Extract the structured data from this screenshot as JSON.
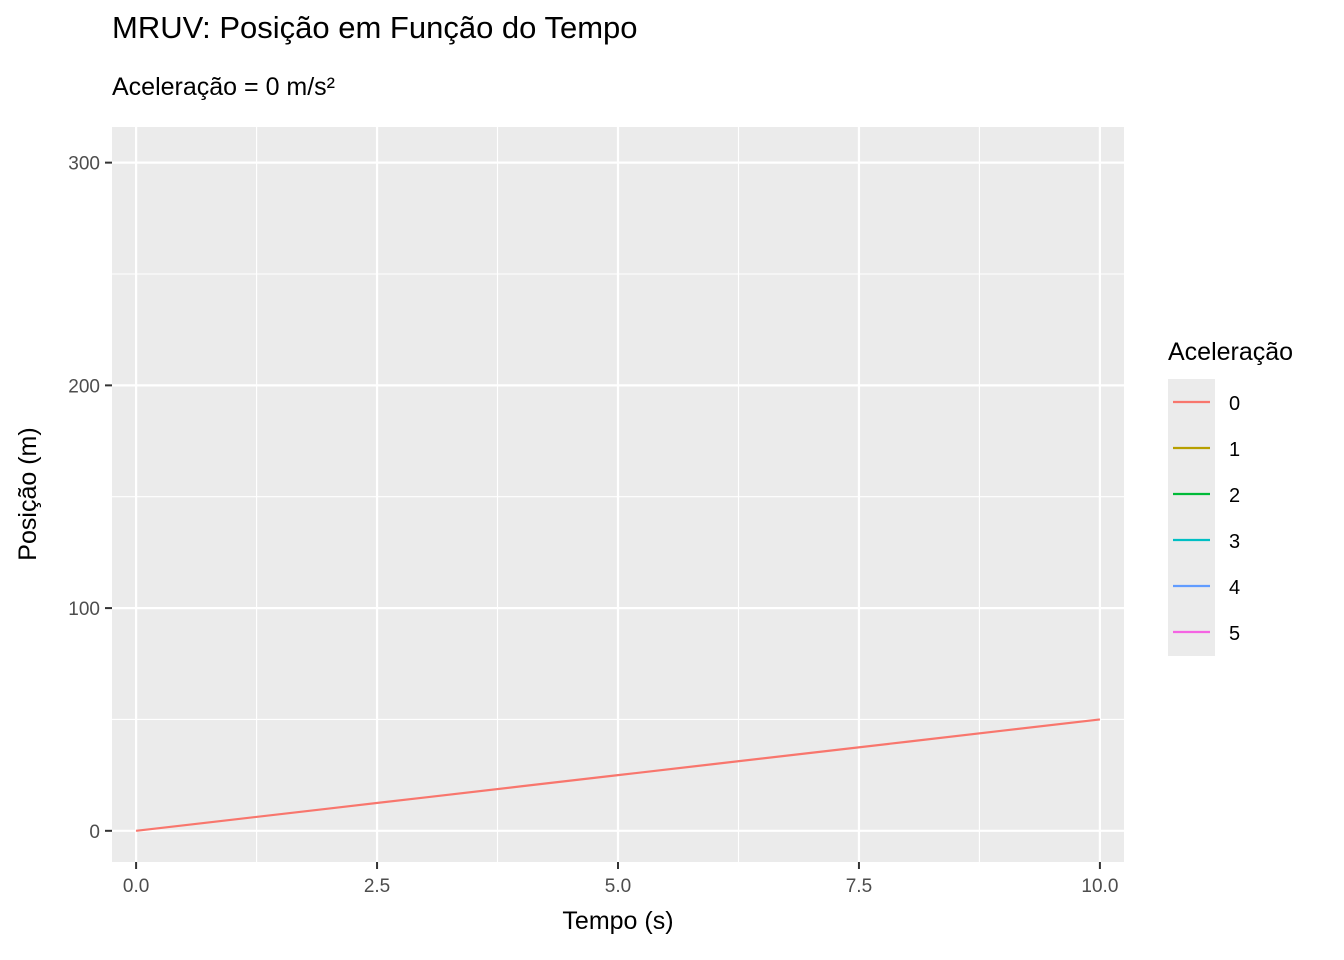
{
  "chart_data": {
    "type": "line",
    "title": "MRUV: Posição em Função do Tempo",
    "subtitle": "Aceleração = 0 m/s²",
    "xlabel": "Tempo (s)",
    "ylabel": "Posição (m)",
    "xlim": [
      -0.25,
      10.25
    ],
    "ylim": [
      -14,
      316
    ],
    "x_ticks": [
      0,
      2.5,
      5,
      7.5,
      10
    ],
    "x_tick_labels": [
      "0.0",
      "2.5",
      "5.0",
      "7.5",
      "10.0"
    ],
    "x_minor_ticks": [
      1.25,
      3.75,
      6.25,
      8.75
    ],
    "y_ticks": [
      0,
      100,
      200,
      300
    ],
    "y_tick_labels": [
      "0",
      "100",
      "200",
      "300"
    ],
    "y_minor_ticks": [
      50,
      150,
      250
    ],
    "grid": true,
    "legend": {
      "title": "Aceleração",
      "placement": "right",
      "entries": [
        "0",
        "1",
        "2",
        "3",
        "4",
        "5"
      ],
      "colors": [
        "#F8766D",
        "#B79F00",
        "#00BA38",
        "#00BFC4",
        "#619CFF",
        "#F564E3"
      ]
    },
    "series": [
      {
        "name": "0",
        "color": "#F8766D",
        "x": [
          0,
          1,
          2,
          3,
          4,
          5,
          6,
          7,
          8,
          9,
          10
        ],
        "y": [
          0,
          5,
          10,
          15,
          20,
          25,
          30,
          35,
          40,
          45,
          50
        ]
      }
    ]
  }
}
